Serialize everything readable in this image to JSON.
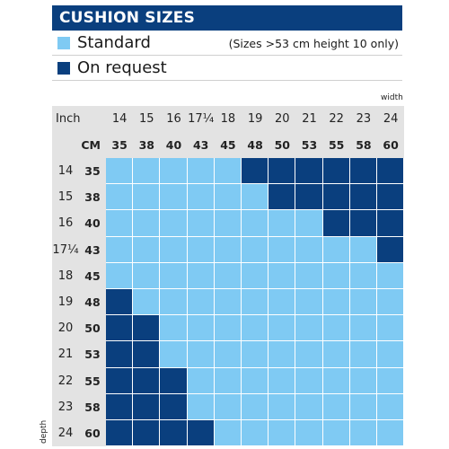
{
  "title": "CUSHION SIZES",
  "legend": [
    {
      "label": "Standard",
      "color": "#7fcaf3"
    },
    {
      "label": "On request",
      "color": "#0a3f7e"
    }
  ],
  "note": "(Sizes >53 cm height 10 only)",
  "axis": {
    "width_label": "width",
    "depth_label": "depth"
  },
  "table": {
    "inch_label": "Inch",
    "cm_label": "CM",
    "width_inch": [
      "14",
      "15",
      "16",
      "17¼",
      "18",
      "19",
      "20",
      "21",
      "22",
      "23",
      "24"
    ],
    "width_cm": [
      "35",
      "38",
      "40",
      "43",
      "45",
      "48",
      "50",
      "53",
      "55",
      "58",
      "60"
    ],
    "depth_inch": [
      "14",
      "15",
      "16",
      "17¼",
      "18",
      "19",
      "20",
      "21",
      "22",
      "23",
      "24"
    ],
    "depth_cm": [
      "35",
      "38",
      "40",
      "43",
      "45",
      "48",
      "50",
      "53",
      "55",
      "58",
      "60"
    ],
    "cells": [
      [
        "S",
        "S",
        "S",
        "S",
        "S",
        "R",
        "R",
        "R",
        "R",
        "R",
        "R"
      ],
      [
        "S",
        "S",
        "S",
        "S",
        "S",
        "S",
        "R",
        "R",
        "R",
        "R",
        "R"
      ],
      [
        "S",
        "S",
        "S",
        "S",
        "S",
        "S",
        "S",
        "S",
        "R",
        "R",
        "R"
      ],
      [
        "S",
        "S",
        "S",
        "S",
        "S",
        "S",
        "S",
        "S",
        "S",
        "S",
        "R"
      ],
      [
        "S",
        "S",
        "S",
        "S",
        "S",
        "S",
        "S",
        "S",
        "S",
        "S",
        "S"
      ],
      [
        "R",
        "S",
        "S",
        "S",
        "S",
        "S",
        "S",
        "S",
        "S",
        "S",
        "S"
      ],
      [
        "R",
        "R",
        "S",
        "S",
        "S",
        "S",
        "S",
        "S",
        "S",
        "S",
        "S"
      ],
      [
        "R",
        "R",
        "S",
        "S",
        "S",
        "S",
        "S",
        "S",
        "S",
        "S",
        "S"
      ],
      [
        "R",
        "R",
        "R",
        "S",
        "S",
        "S",
        "S",
        "S",
        "S",
        "S",
        "S"
      ],
      [
        "R",
        "R",
        "R",
        "S",
        "S",
        "S",
        "S",
        "S",
        "S",
        "S",
        "S"
      ],
      [
        "R",
        "R",
        "R",
        "R",
        "S",
        "S",
        "S",
        "S",
        "S",
        "S",
        "S"
      ]
    ]
  }
}
